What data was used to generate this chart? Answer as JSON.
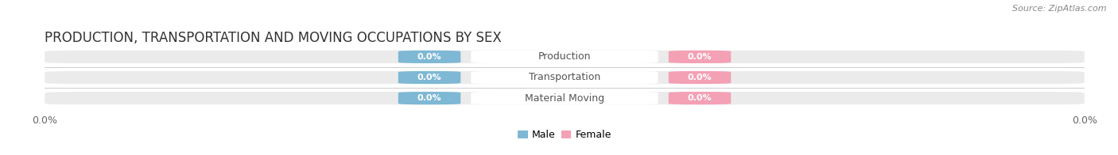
{
  "title": "PRODUCTION, TRANSPORTATION AND MOVING OCCUPATIONS BY SEX",
  "source_text": "Source: ZipAtlas.com",
  "categories": [
    "Production",
    "Transportation",
    "Material Moving"
  ],
  "male_values": [
    0.0,
    0.0,
    0.0
  ],
  "female_values": [
    0.0,
    0.0,
    0.0
  ],
  "male_color": "#7EB8D4",
  "female_color": "#F4A0B5",
  "male_label": "Male",
  "female_label": "Female",
  "bar_bg_color": "#EBEBEB",
  "bar_height": 0.62,
  "title_fontsize": 12,
  "tick_fontsize": 9,
  "value_fontsize": 8,
  "label_fontsize": 9,
  "source_fontsize": 8,
  "value_label_color": "#FFFFFF",
  "category_label_color": "#555555",
  "figsize": [
    14.06,
    1.96
  ],
  "dpi": 100
}
